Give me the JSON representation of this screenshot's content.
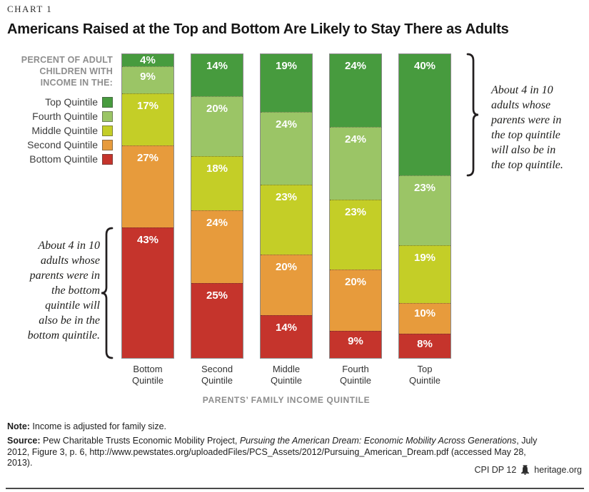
{
  "page": {
    "kicker": "CHART 1",
    "title": "Americans Raised at the Top and Bottom Are Likely to Stay There as Adults"
  },
  "legend": {
    "header": "PERCENT OF ADULT\nCHILDREN WITH\nINCOME IN THE:",
    "items": [
      {
        "label": "Top Quintile",
        "color": "#479b3e"
      },
      {
        "label": "Fourth Quintile",
        "color": "#9bc566"
      },
      {
        "label": "Middle Quintile",
        "color": "#c4ce27"
      },
      {
        "label": "Second Quintile",
        "color": "#e79b3c"
      },
      {
        "label": "Bottom Quintile",
        "color": "#c5342c"
      }
    ]
  },
  "chart_data": {
    "type": "bar",
    "variant": "stacked-100-percent",
    "title": "Americans Raised at the Top and Bottom Are Likely to Stay There as Adults",
    "categories": [
      "Bottom\nQuintile",
      "Second\nQuintile",
      "Middle\nQuintile",
      "Fourth\nQuintile",
      "Top\nQuintile"
    ],
    "xlabel": "PARENTS’ FAMILY INCOME QUINTILE",
    "ylabel": "Percent of adult children with income in the quintile",
    "ylim": [
      0,
      100
    ],
    "value_suffix": "%",
    "grid": false,
    "legend_position": "left",
    "series": [
      {
        "name": "Top Quintile",
        "color": "#479b3e",
        "values": [
          4,
          14,
          19,
          24,
          40
        ]
      },
      {
        "name": "Fourth Quintile",
        "color": "#9bc566",
        "values": [
          9,
          20,
          24,
          24,
          23
        ]
      },
      {
        "name": "Middle Quintile",
        "color": "#c4ce27",
        "values": [
          17,
          18,
          23,
          23,
          19
        ]
      },
      {
        "name": "Second Quintile",
        "color": "#e79b3c",
        "values": [
          27,
          24,
          20,
          20,
          10
        ]
      },
      {
        "name": "Bottom Quintile",
        "color": "#c5342c",
        "values": [
          43,
          25,
          14,
          9,
          8
        ]
      }
    ]
  },
  "annotations": {
    "right": "About 4 in 10\nadults whose\nparents were in\nthe top quintile\nwill also be in\nthe top quintile.",
    "left": "About 4 in 10\nadults whose\nparents were in\nthe bottom\nquintile will\nalso be in the\nbottom quintile."
  },
  "footer": {
    "note_label": "Note:",
    "note_text": " Income is adjusted for family size.",
    "source_label": "Source:",
    "source_pre": " Pew Charitable Trusts Economic Mobility Project, ",
    "source_italic": "Pursuing the American Dream: Economic Mobility Across Generations",
    "source_post": ", July 2012, Figure 3, p. 6, http://www.pewstates.org/uploadedFiles/PCS_Assets/2012/Pursuing_American_Dream.pdf (accessed May 28, 2013).",
    "code": "CPI DP 12",
    "brand": "heritage.org",
    "bell_icon": "liberty-bell-icon"
  }
}
